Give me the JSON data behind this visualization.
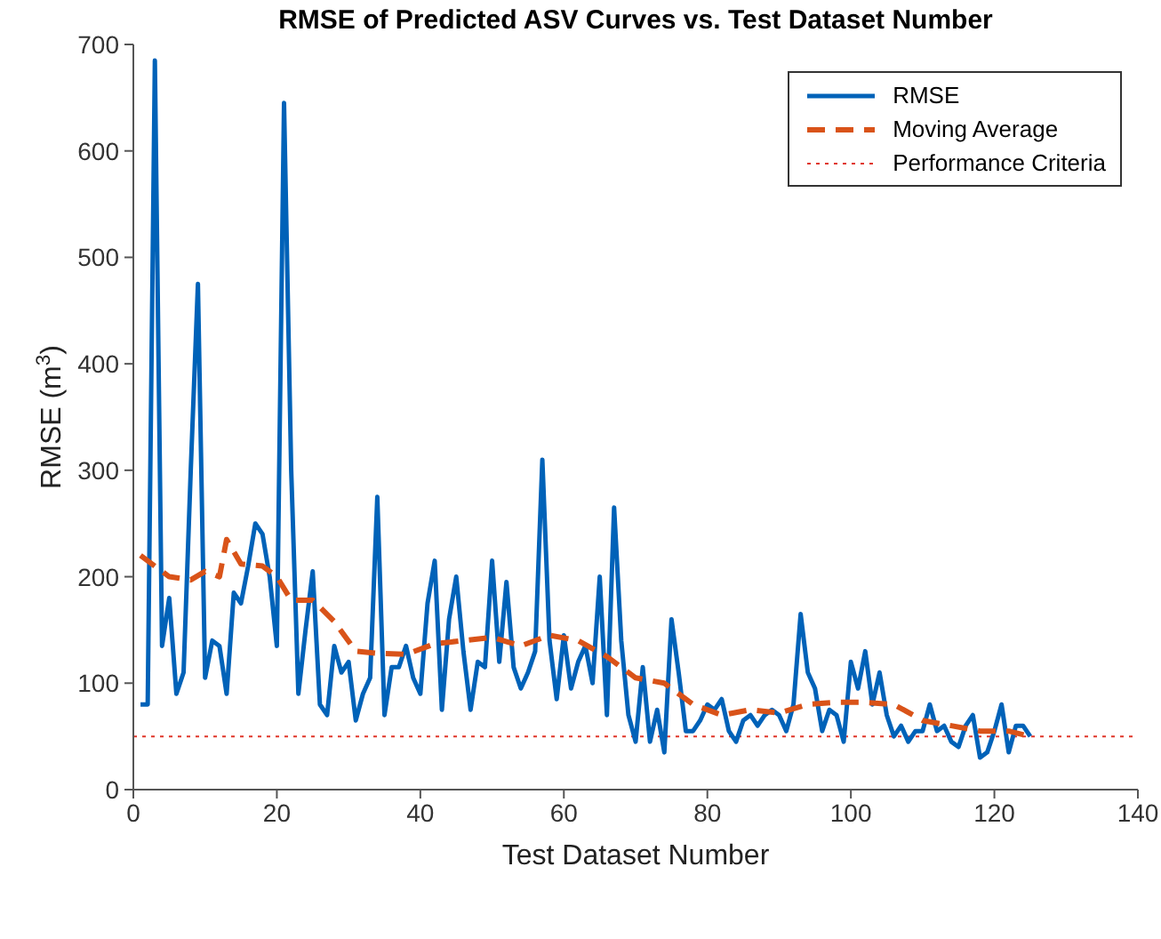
{
  "chart_data": {
    "type": "line",
    "title": "RMSE of Predicted ASV Curves vs. Test Dataset Number",
    "xlabel": "Test Dataset Number",
    "ylabel": "RMSE (m$^{3}$)",
    "xlim": [
      0,
      140
    ],
    "xticks": [
      0,
      20,
      40,
      60,
      80,
      100,
      120,
      140
    ],
    "ylim": [
      0,
      700
    ],
    "yticks": [
      0,
      100,
      200,
      300,
      400,
      500,
      600,
      700
    ],
    "grid": false,
    "legend": "top right",
    "marker": "none",
    "series": [
      {
        "name": "RMSE",
        "color": "#0062b8",
        "line_style": "solid",
        "x": [
          1,
          2,
          3,
          4,
          5,
          6,
          7,
          8,
          9,
          10,
          11,
          12,
          13,
          14,
          15,
          16,
          17,
          18,
          19,
          20,
          21,
          22,
          23,
          24,
          25,
          26,
          27,
          28,
          29,
          30,
          31,
          32,
          33,
          34,
          35,
          36,
          37,
          38,
          39,
          40,
          41,
          42,
          43,
          44,
          45,
          46,
          47,
          48,
          49,
          50,
          51,
          52,
          53,
          54,
          55,
          56,
          57,
          58,
          59,
          60,
          61,
          62,
          63,
          64,
          65,
          66,
          67,
          68,
          69,
          70,
          71,
          72,
          73,
          74,
          75,
          76,
          77,
          78,
          79,
          80,
          81,
          82,
          83,
          84,
          85,
          86,
          87,
          88,
          89,
          90,
          91,
          92,
          93,
          94,
          95,
          96,
          97,
          98,
          99,
          100,
          101,
          102,
          103,
          104,
          105,
          106,
          107,
          108,
          109,
          110,
          111,
          112,
          113,
          114,
          115,
          116,
          117,
          118,
          119,
          120,
          121,
          122,
          123,
          124,
          125
        ],
        "values": [
          80,
          80,
          685,
          135,
          180,
          90,
          110,
          300,
          475,
          105,
          140,
          135,
          90,
          185,
          175,
          210,
          250,
          240,
          200,
          135,
          645,
          300,
          90,
          150,
          205,
          80,
          70,
          135,
          110,
          120,
          65,
          90,
          105,
          275,
          70,
          115,
          115,
          135,
          105,
          90,
          175,
          215,
          75,
          160,
          200,
          130,
          75,
          120,
          115,
          215,
          120,
          195,
          115,
          95,
          110,
          130,
          310,
          140,
          85,
          145,
          95,
          120,
          135,
          100,
          200,
          70,
          265,
          140,
          70,
          45,
          115,
          45,
          75,
          35,
          160,
          110,
          55,
          55,
          65,
          80,
          75,
          85,
          55,
          45,
          65,
          70,
          60,
          70,
          75,
          70,
          55,
          80,
          165,
          110,
          95,
          55,
          75,
          70,
          45,
          120,
          95,
          130,
          80,
          110,
          70,
          50,
          60,
          45,
          55,
          55,
          80,
          55,
          60,
          45,
          40,
          60,
          70,
          30,
          35,
          55,
          80,
          35,
          60,
          60,
          50
        ]
      },
      {
        "name": "Moving Average",
        "color": "#d95319",
        "line_style": "dashed",
        "x": [
          1,
          5,
          8,
          10,
          12,
          13,
          15,
          18,
          20,
          22,
          25,
          28,
          31,
          34,
          38,
          42,
          46,
          50,
          54,
          58,
          62,
          66,
          70,
          74,
          78,
          82,
          86,
          90,
          94,
          98,
          102,
          106,
          110,
          114,
          118,
          122,
          125
        ],
        "values": [
          220,
          200,
          197,
          205,
          200,
          235,
          212,
          210,
          200,
          178,
          178,
          158,
          130,
          128,
          127,
          137,
          140,
          143,
          135,
          145,
          140,
          125,
          105,
          100,
          80,
          70,
          75,
          72,
          80,
          82,
          82,
          80,
          65,
          60,
          55,
          55,
          50
        ]
      }
    ],
    "ref_lines": [
      {
        "axis": "y",
        "value": 50,
        "label": "Performance Criteria",
        "color": "#e0362a",
        "line_style": "dotted"
      }
    ]
  }
}
